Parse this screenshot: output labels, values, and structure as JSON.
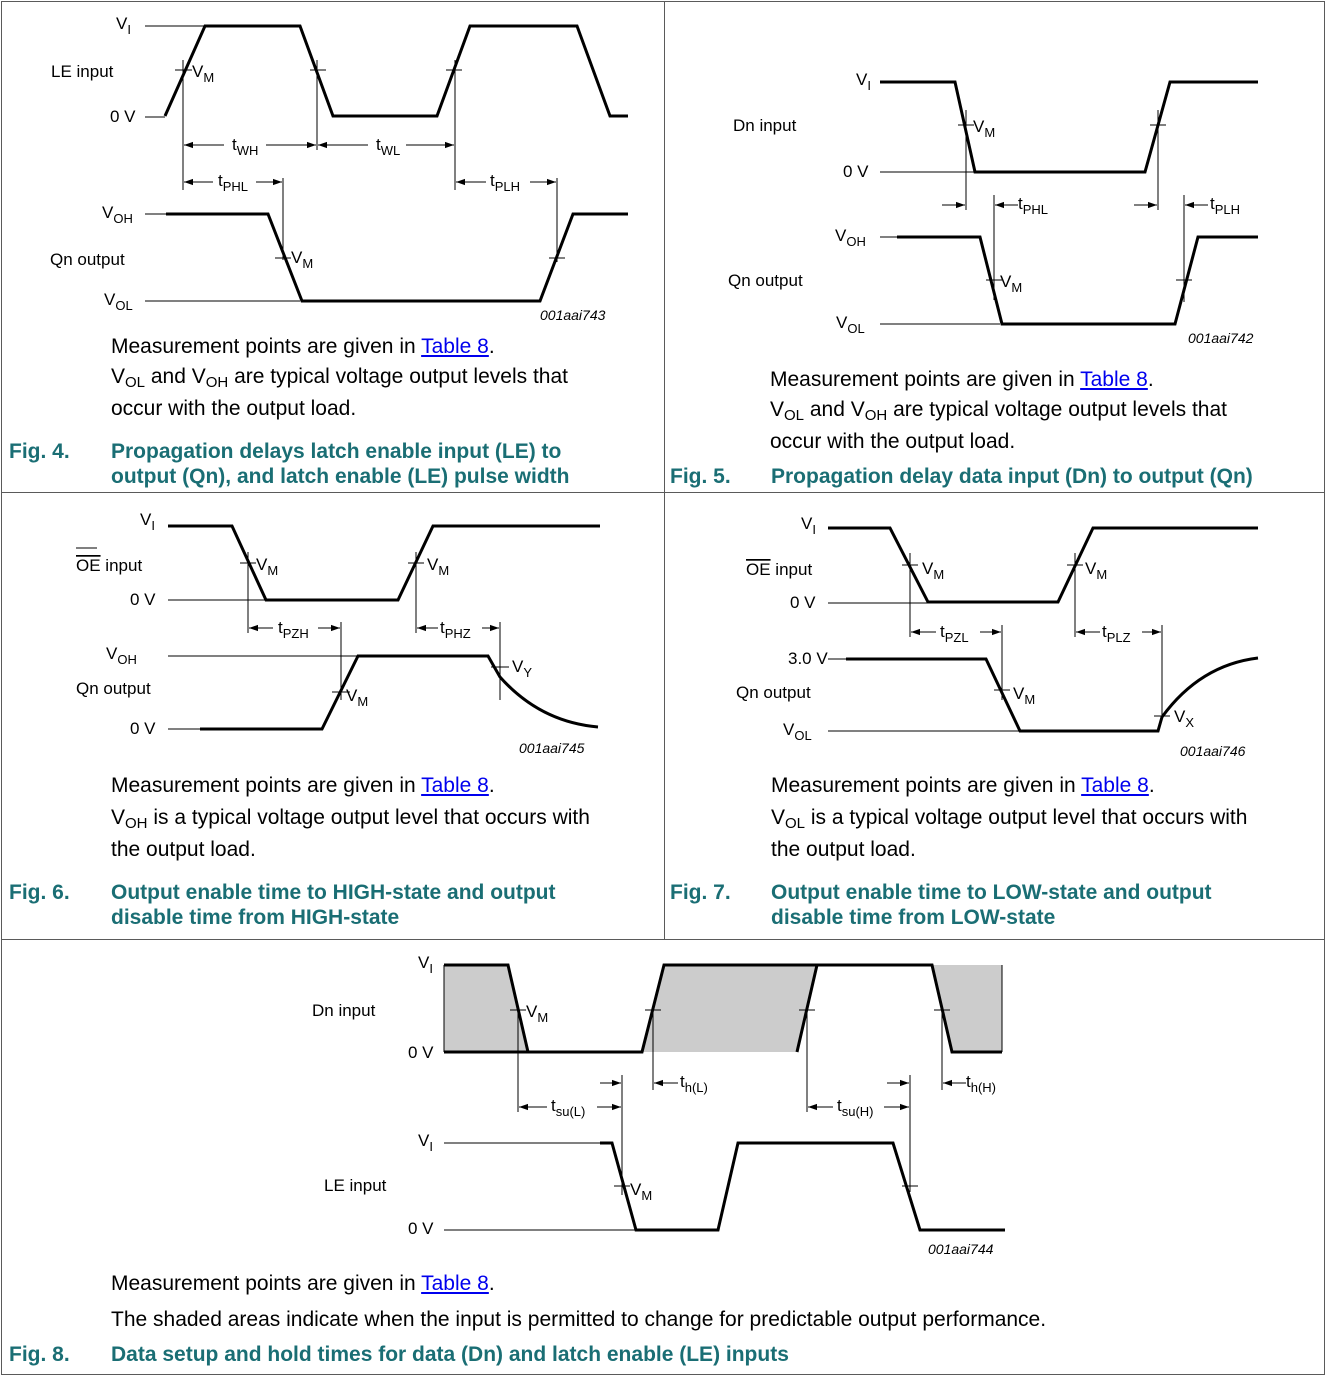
{
  "table_link": "Table 8",
  "fig4": {
    "num": "Fig. 4.",
    "cap1": "Propagation delays latch enable input (LE) to",
    "cap2": "output (Qn), and latch enable (LE) pulse width",
    "code": "001aai743",
    "in_label": "LE  input",
    "out_label": "Qn output",
    "zero": "0 V"
  },
  "fig5": {
    "num": "Fig. 5.",
    "cap": "Propagation delay data input (Dn) to output (Qn)",
    "code": "001aai742",
    "in_label": "Dn input",
    "out_label": "Qn output",
    "zero": "0 V"
  },
  "fig6": {
    "num": "Fig. 6.",
    "cap1": "Output enable time to HIGH-state and output",
    "cap2": "disable time from HIGH-state",
    "code": "001aai745",
    "in_label": "input",
    "oe": "OE",
    "out_label": "Qn output",
    "zero": "0 V"
  },
  "fig7": {
    "num": "Fig. 7.",
    "cap1": "Output enable time to LOW-state and output",
    "cap2": "disable time from LOW-state",
    "code": "001aai746",
    "in_label": "input",
    "oe": "OE",
    "out_label": "Qn output",
    "zero": "0 V",
    "v30": "3.0 V"
  },
  "fig8": {
    "num": "Fig. 8.",
    "cap": "Data setup and hold times for data (Dn) and latch enable (LE) inputs",
    "code": "001aai744",
    "in_label": "Dn input",
    "le_label": "LE input",
    "zero": "0 V",
    "note": "The shaded areas indicate when the input is permitted to change for predictable output performance."
  },
  "notes": {
    "meas": "Measurement points are given in ",
    "both1": " and ",
    "both2": " are typical voltage output levels that",
    "both3": "occur with the output load.",
    "single": " is a typical voltage output level that occurs with",
    "single2": "the output load."
  },
  "sym": {
    "V": "V",
    "I": "I",
    "M": "M",
    "OH": "OH",
    "OL": "OL",
    "X": "X",
    "Y": "Y",
    "t": "t",
    "WH": "WH",
    "WL": "WL",
    "PHL": "PHL",
    "PLH": "PLH",
    "PZH": "PZH",
    "PHZ": "PHZ",
    "PZL": "PZL",
    "PLZ": "PLZ",
    "hL": "h(L)",
    "hH": "h(H)",
    "suL": "su(L)",
    "suH": "su(H)"
  }
}
